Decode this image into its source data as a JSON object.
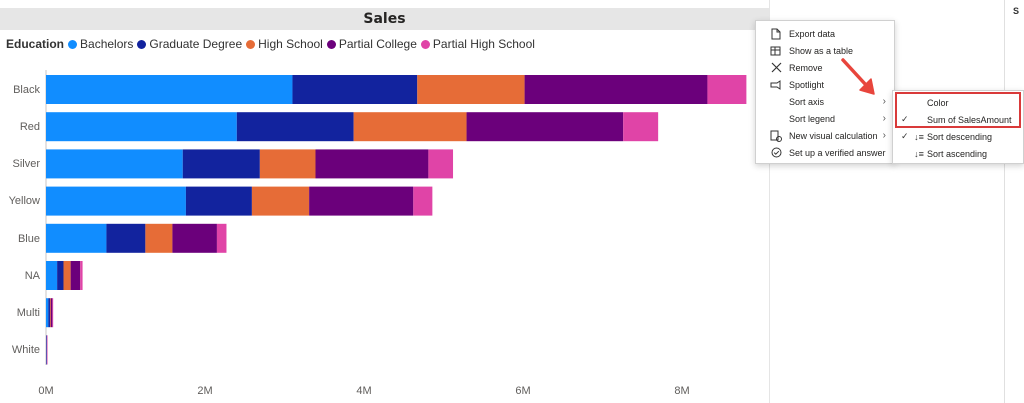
{
  "visual": {
    "title": "Sales"
  },
  "legend": {
    "title": "Education",
    "items": [
      {
        "label": "Bachelors",
        "color": "#118DFF"
      },
      {
        "label": "Graduate Degree",
        "color": "#12239E"
      },
      {
        "label": "High School",
        "color": "#E66C37"
      },
      {
        "label": "Partial College",
        "color": "#6B007B"
      },
      {
        "label": "Partial High School",
        "color": "#E044A7"
      }
    ]
  },
  "chart_data": {
    "type": "bar",
    "orientation": "horizontal",
    "stacked": true,
    "categories": [
      "Black",
      "Red",
      "Silver",
      "Yellow",
      "Blue",
      "NA",
      "Multi",
      "White"
    ],
    "x_ticks": [
      "0M",
      "2M",
      "4M",
      "6M",
      "8M"
    ],
    "xlim": [
      0,
      9.0
    ],
    "units": "M",
    "series": [
      {
        "name": "Bachelors",
        "color": "#118DFF",
        "values": [
          3.1,
          2.4,
          1.72,
          1.76,
          0.76,
          0.14,
          0.03,
          0.005
        ]
      },
      {
        "name": "Graduate Degree",
        "color": "#12239E",
        "values": [
          1.57,
          1.47,
          0.97,
          0.83,
          0.49,
          0.08,
          0.02,
          0.002
        ]
      },
      {
        "name": "High School",
        "color": "#E66C37",
        "values": [
          1.35,
          1.42,
          0.7,
          0.72,
          0.34,
          0.09,
          0.01,
          0.002
        ]
      },
      {
        "name": "Partial College",
        "color": "#6B007B",
        "values": [
          2.3,
          1.97,
          1.42,
          1.31,
          0.56,
          0.12,
          0.02,
          0.002
        ]
      },
      {
        "name": "Partial High School",
        "color": "#E044A7",
        "values": [
          0.49,
          0.44,
          0.31,
          0.24,
          0.12,
          0.03,
          0.01,
          0.001
        ]
      }
    ]
  },
  "context_menu": {
    "items": [
      {
        "label": "Export data",
        "icon": "export-icon",
        "has_submenu": false
      },
      {
        "label": "Show as a table",
        "icon": "table-icon",
        "has_submenu": false
      },
      {
        "label": "Remove",
        "icon": "close-icon",
        "has_submenu": false
      },
      {
        "label": "Spotlight",
        "icon": "spotlight-icon",
        "has_submenu": false
      },
      {
        "label": "Sort axis",
        "icon": "",
        "has_submenu": true
      },
      {
        "label": "Sort legend",
        "icon": "",
        "has_submenu": true
      },
      {
        "label": "New visual calculation",
        "icon": "calculation-icon",
        "has_submenu": true
      },
      {
        "label": "Set up a verified answer",
        "icon": "verified-icon",
        "has_submenu": false
      }
    ]
  },
  "sort_submenu": {
    "items": [
      {
        "label": "Color",
        "checked": false,
        "icon": ""
      },
      {
        "label": "Sum of SalesAmount",
        "checked": true,
        "icon": ""
      },
      {
        "label": "Sort descending",
        "checked": true,
        "icon": "sort-descending-icon"
      },
      {
        "label": "Sort ascending",
        "checked": false,
        "icon": "sort-ascending-icon"
      }
    ]
  },
  "right_panel": {
    "letter": "S"
  },
  "colors": {
    "highlight": "#D93A3A",
    "arrow": "#E8453C"
  }
}
